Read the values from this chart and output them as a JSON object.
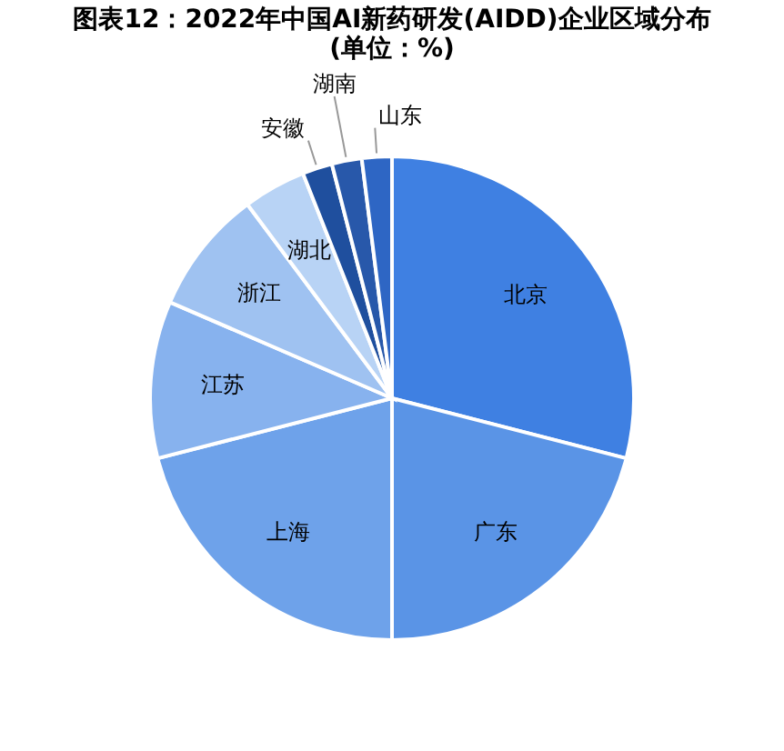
{
  "chart_data": {
    "type": "pie",
    "title": "图表12：2022年中国AI新药研发(AIDD)企业区域分布(单位：%)",
    "categories": [
      "北京",
      "广东",
      "上海",
      "江苏",
      "浙江",
      "湖北",
      "安徽",
      "湖南",
      "山东"
    ],
    "values": [
      29,
      21,
      21,
      10.5,
      8.3,
      4.2,
      2,
      2,
      2
    ],
    "colors": [
      "#3f80e2",
      "#5a94e6",
      "#6ea2ea",
      "#87b2ee",
      "#9fc2f1",
      "#b8d3f5",
      "#1f4f9e",
      "#2858aa",
      "#2e66c4"
    ],
    "legend": false
  }
}
